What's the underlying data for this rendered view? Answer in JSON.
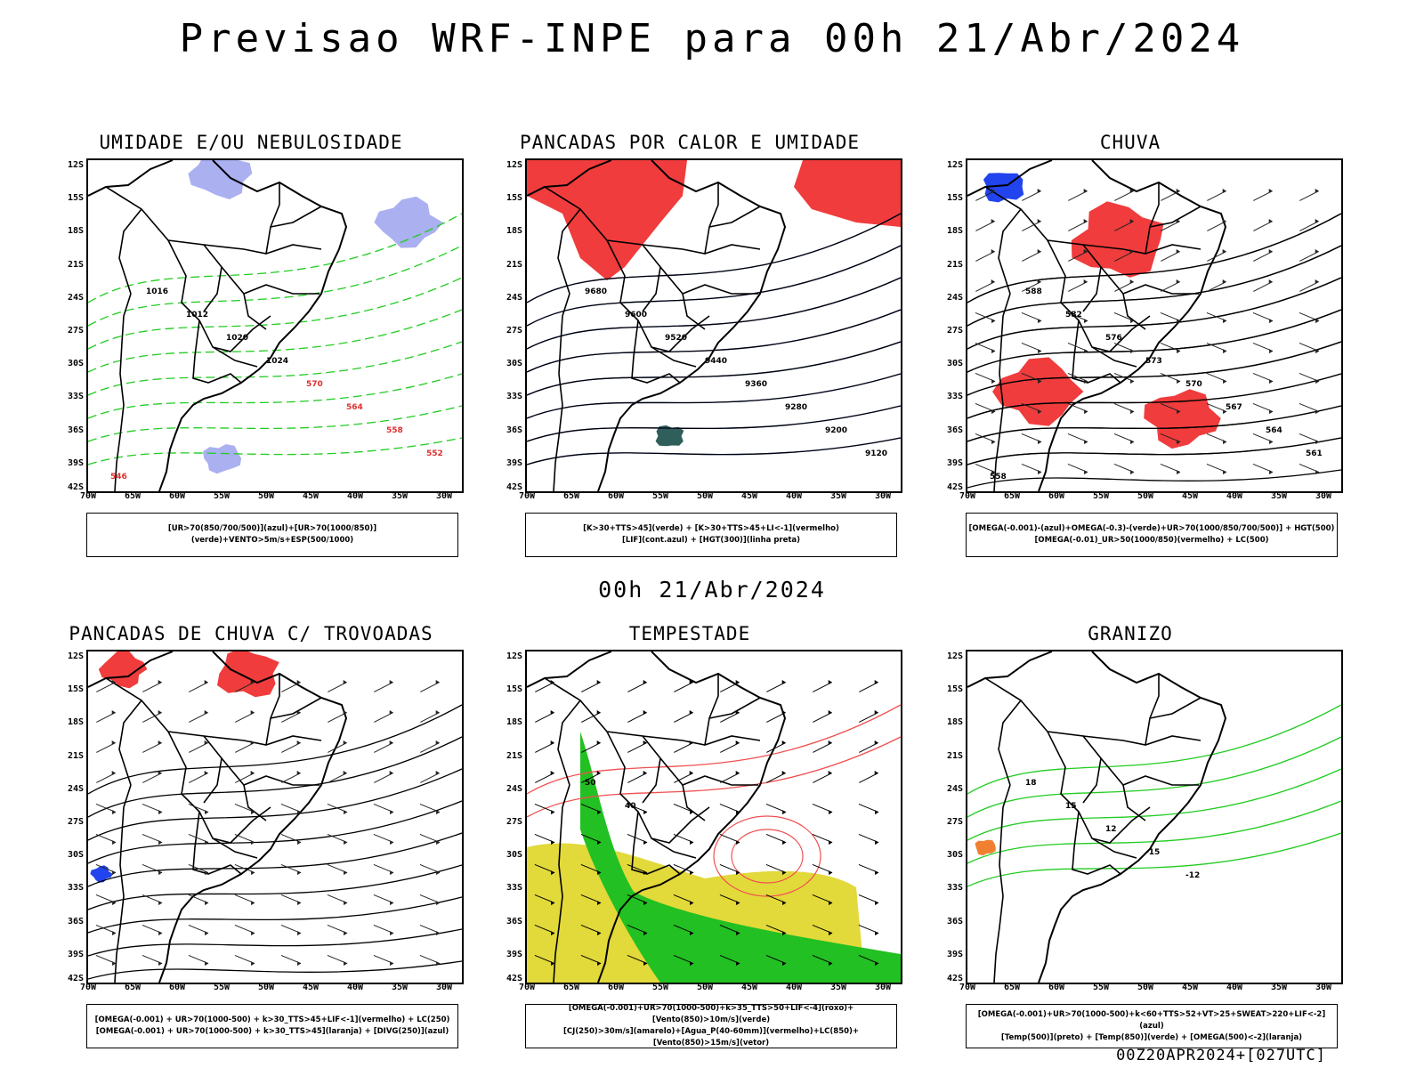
{
  "title": "Previsao WRF-INPE  para 00h 21/Abr/2024",
  "mid_title": "00h 21/Abr/2024",
  "footer": "00Z20APR2024+[027UTC]",
  "lat_labels": [
    "12S",
    "15S",
    "18S",
    "21S",
    "24S",
    "27S",
    "30S",
    "33S",
    "36S",
    "39S",
    "42S"
  ],
  "lon_labels": [
    "70W",
    "65W",
    "60W",
    "55W",
    "50W",
    "45W",
    "40W",
    "35W",
    "30W"
  ],
  "panels": [
    {
      "title": "UMIDADE E/OU NEBULOSIDADE",
      "legend": [
        "[UR>70(850/700/500)](azul)+[UR>70(1000/850)](verde)+VENTO>5m/s+ESP(500/1000)"
      ],
      "fills": [
        "#aab0f0",
        "#ffffff"
      ],
      "contour_color": "#22cc22",
      "isolines": [
        "1016",
        "1012",
        "1020",
        "1024",
        "570",
        "564",
        "558",
        "552",
        "546"
      ]
    },
    {
      "title": "PANCADAS POR CALOR E UMIDADE",
      "legend": [
        "[K>30+TTS>45](verde) + [K>30+TTS>45+LI<-1](vermelho)",
        "[LIF](cont.azul) + [HGT(300)](linha preta)"
      ],
      "fills": [
        "#f03c3c",
        "#2f5f5a"
      ],
      "contour_color": "#3355ee",
      "isolines": [
        "9680",
        "9600",
        "9520",
        "9440",
        "9360",
        "9280",
        "9200",
        "9120"
      ]
    },
    {
      "title": "CHUVA",
      "legend": [
        "[OMEGA(-0.001)-(azul)+OMEGA(-0.3)-(verde)+UR>70(1000/850/700/500)] + HGT(500)",
        "[OMEGA(-0.01)_UR>50(1000/850)(vermelho) + LC(500)"
      ],
      "fills": [
        "#f03c3c",
        "#2244ee"
      ],
      "contour_color": "#000000",
      "isolines": [
        "588",
        "582",
        "576",
        "573",
        "570",
        "567",
        "564",
        "561",
        "558"
      ]
    },
    {
      "title": "PANCADAS DE CHUVA C/ TROVOADAS",
      "legend": [
        "[OMEGA(-0.001) + UR>70(1000-500) + k>30_TTS>45+LIF<-1](vermelho) + LC(250)",
        "[OMEGA(-0.001) + UR>70(1000-500) + k>30_TTS>45](laranja) + [DIVG(250)](azul)"
      ],
      "fills": [
        "#f03c3c",
        "#2244ee"
      ],
      "contour_color": "#000000",
      "isolines": []
    },
    {
      "title": "TEMPESTADE",
      "legend": [
        "[OMEGA(-0.001)+UR>70(1000-500)+k>35_TTS>50+LIF<-4](roxo)+[Vento(850)>10m/s](verde)",
        "[CJ(250)>30m/s](amarelo)+[Agua_P(40-60mm)](vermelho)+LC(850)+[Vento(850)>15m/s](vetor)"
      ],
      "fills": [
        "#e2d93a",
        "#22c022"
      ],
      "contour_color": "#f05050",
      "isolines": [
        "50",
        "40"
      ]
    },
    {
      "title": "GRANIZO",
      "legend": [
        "[OMEGA(-0.001)+UR>70(1000-500)+k<60+TTS>52+VT>25+SWEAT>220+LIF<-2](azul)",
        "[Temp(500)](preto) + [Temp(850)](verde) + [OMEGA(500)<-2](laranja)"
      ],
      "fills": [
        "#f08030",
        "#ffffff"
      ],
      "contour_color": "#22cc22",
      "isolines": [
        "18",
        "15",
        "12",
        "-15",
        "-12"
      ]
    }
  ]
}
